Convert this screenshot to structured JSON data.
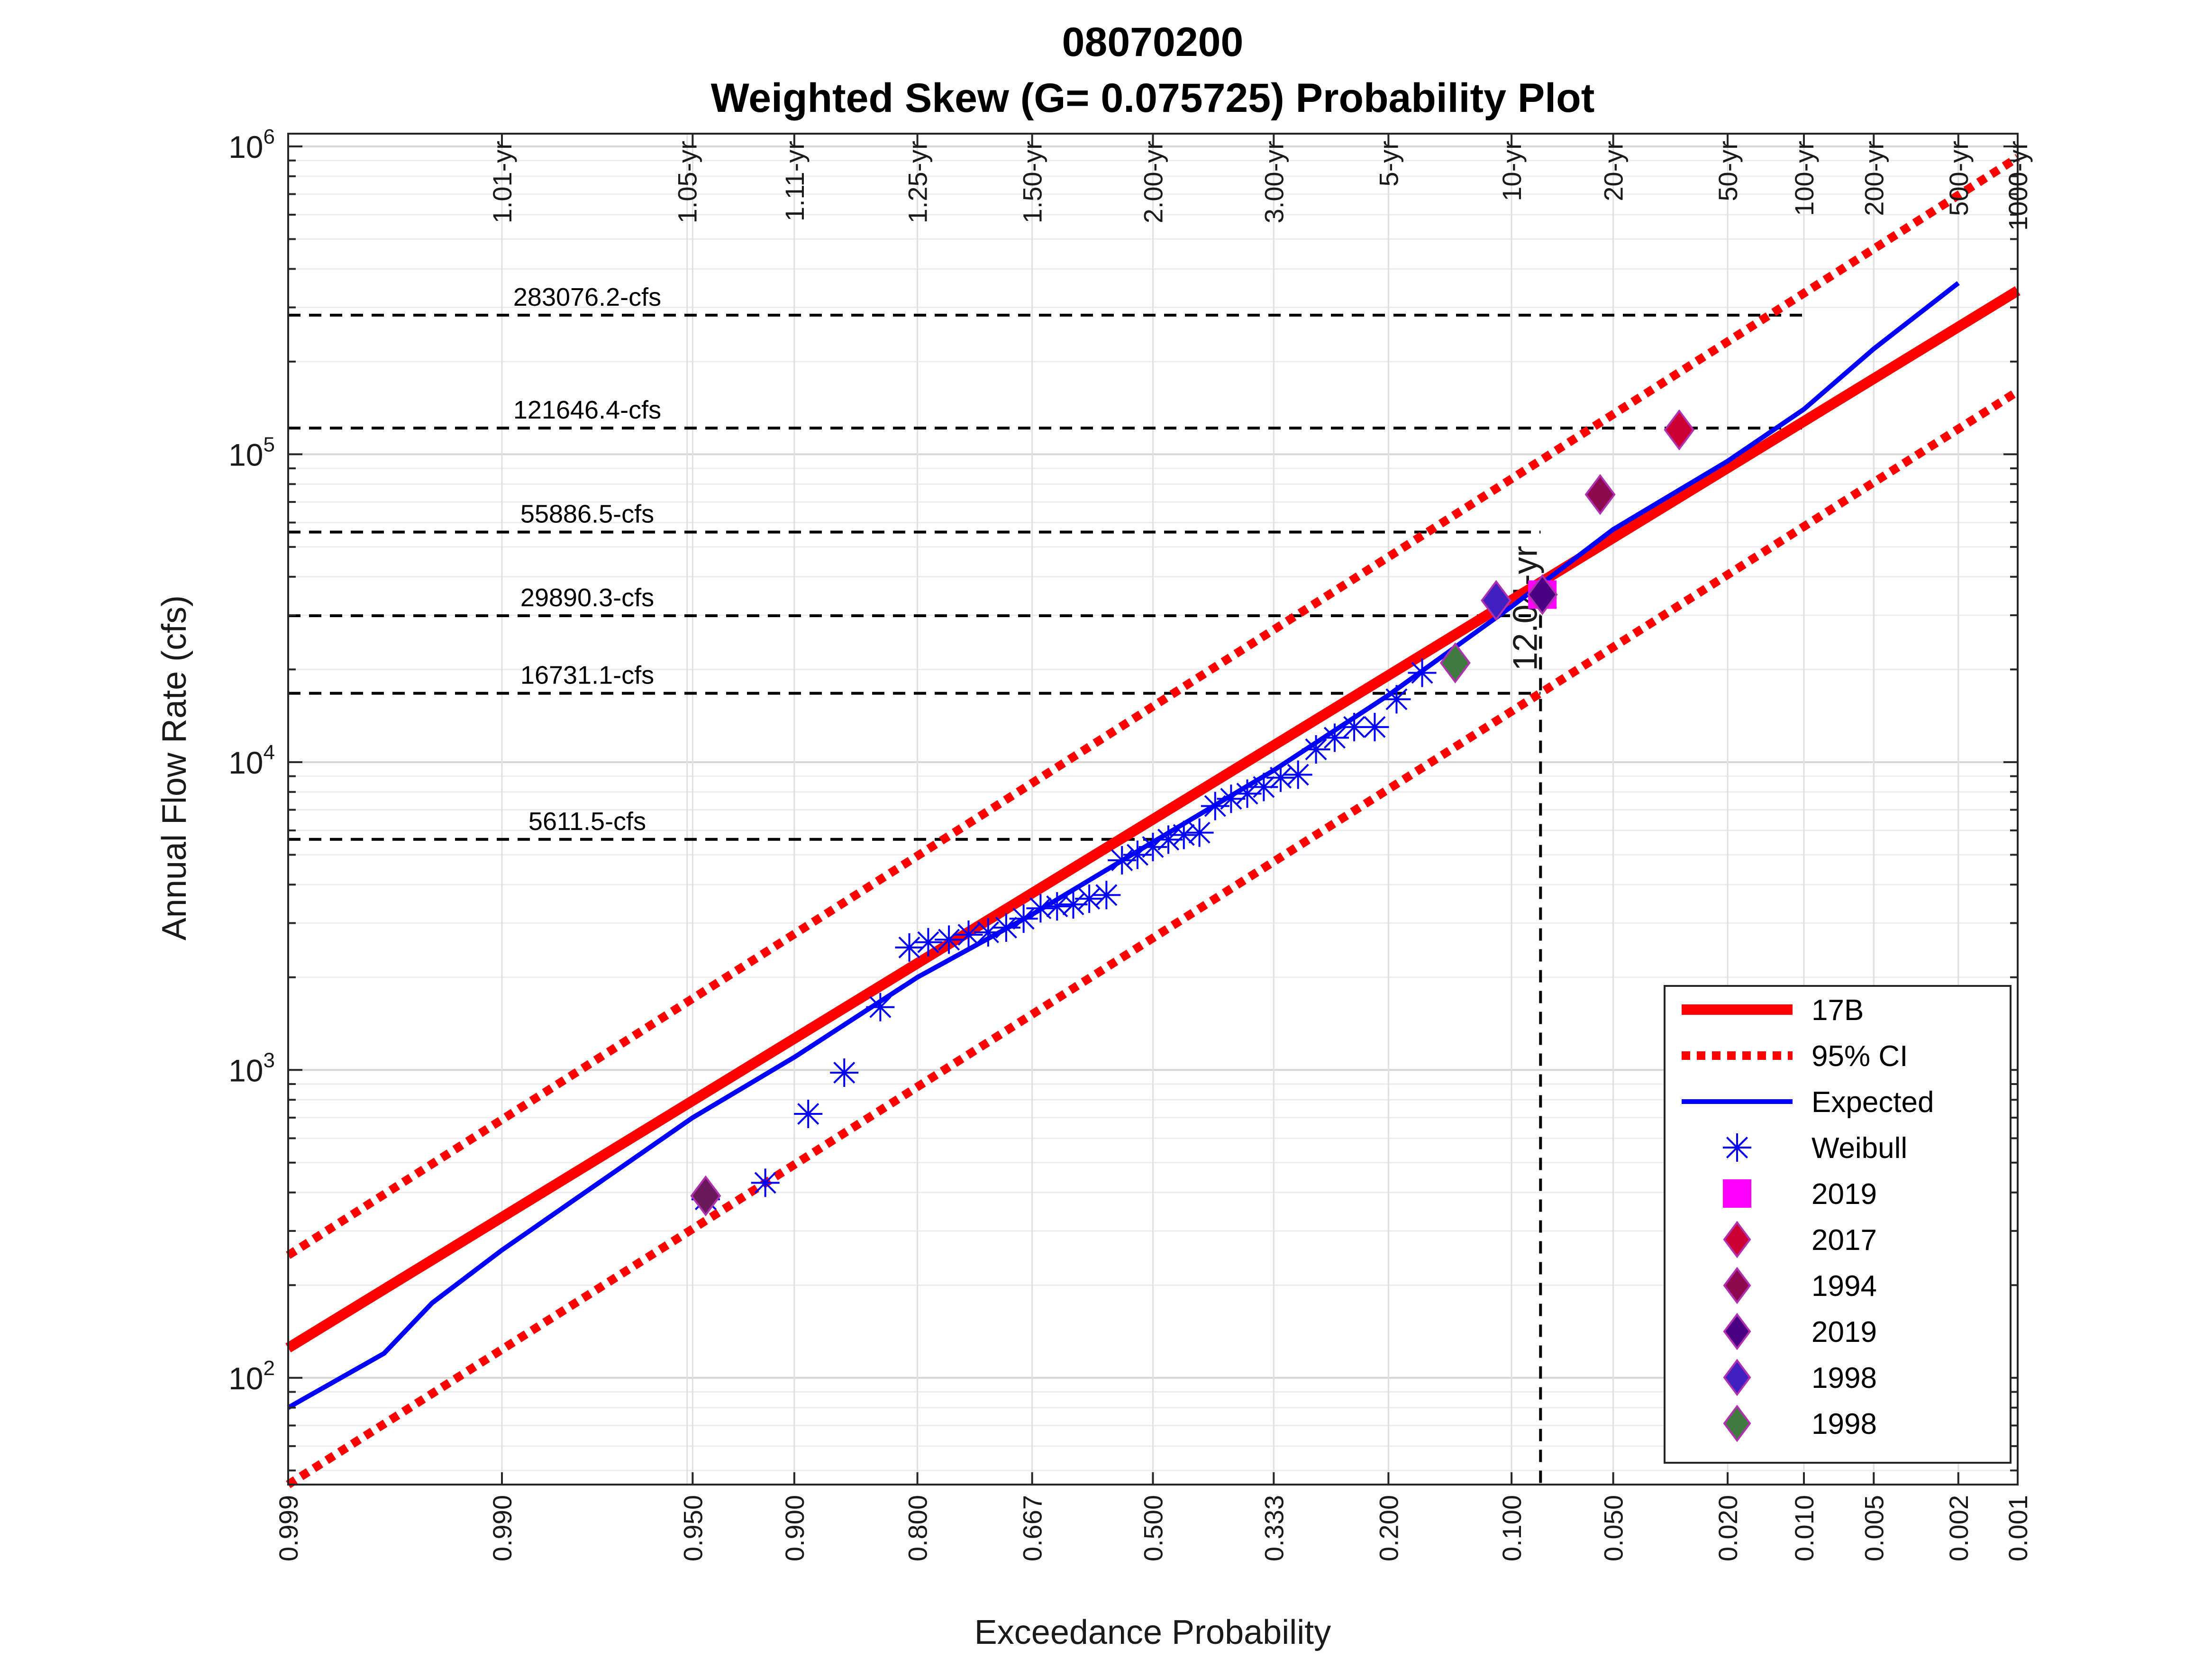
{
  "chart_data": {
    "type": "line",
    "title": "08070200",
    "subtitle": "Weighted Skew (G= 0.075725) Probability Plot",
    "xlabel": "Exceedance Probability",
    "ylabel": "Annual Flow Rate (cfs)",
    "xscale": "normal-probability (reversed)",
    "yscale": "log",
    "xlim": [
      0.999,
      0.001
    ],
    "ylim": [
      45,
      1100000
    ],
    "grid": true,
    "legend_position": "bottom-right",
    "x_ticks": [
      "0.999",
      "0.990",
      "0.950",
      "0.900",
      "0.800",
      "0.667",
      "0.500",
      "0.333",
      "0.200",
      "0.100",
      "0.050",
      "0.020",
      "0.010",
      "0.005",
      "0.002",
      "0.001"
    ],
    "x_tick_values": [
      0.999,
      0.99,
      0.95,
      0.9,
      0.8,
      0.667,
      0.5,
      0.333,
      0.2,
      0.1,
      0.05,
      0.02,
      0.01,
      0.005,
      0.002,
      0.001
    ],
    "y_ticks": [
      {
        "base": "10",
        "exp": "2",
        "value": 100
      },
      {
        "base": "10",
        "exp": "3",
        "value": 1000
      },
      {
        "base": "10",
        "exp": "4",
        "value": 10000
      },
      {
        "base": "10",
        "exp": "5",
        "value": 100000
      },
      {
        "base": "10",
        "exp": "6",
        "value": 1000000
      }
    ],
    "return_periods": [
      {
        "label": "1.01-yr",
        "p": 0.99
      },
      {
        "label": "1.05-yr",
        "p": 0.952
      },
      {
        "label": "1.11-yr",
        "p": 0.9
      },
      {
        "label": "1.25-yr",
        "p": 0.8
      },
      {
        "label": "1.50-yr",
        "p": 0.667
      },
      {
        "label": "2.00-yr",
        "p": 0.5
      },
      {
        "label": "3.00-yr",
        "p": 0.333
      },
      {
        "label": "5-yr",
        "p": 0.2
      },
      {
        "label": "10-yr",
        "p": 0.1
      },
      {
        "label": "20-yr",
        "p": 0.05
      },
      {
        "label": "50-yr",
        "p": 0.02
      },
      {
        "label": "100-yr",
        "p": 0.01
      },
      {
        "label": "200-yr",
        "p": 0.005
      },
      {
        "label": "500-yr",
        "p": 0.002
      },
      {
        "label": "1000-yr",
        "p": 0.001
      }
    ],
    "flow_levels": [
      {
        "label": "283076.2-cfs",
        "value": 283076.2,
        "x_end": 0.01
      },
      {
        "label": "121646.4-cfs",
        "value": 121646.4,
        "x_end": 0.01
      },
      {
        "label": "55886.5-cfs",
        "value": 55886.5,
        "x_end": 0.083
      },
      {
        "label": "29890.3-cfs",
        "value": 29890.3,
        "x_end": 0.083
      },
      {
        "label": "16731.1-cfs",
        "value": 16731.1,
        "x_end": 0.083
      },
      {
        "label": "5611.5-cfs",
        "value": 5611.5,
        "x_end": 0.5
      }
    ],
    "event_marker": {
      "label": "12.04-yr",
      "p": 0.083
    },
    "series": [
      {
        "name": "17B",
        "color": "#ff0000",
        "style": "solid-thick",
        "x": [
          0.999,
          0.001
        ],
        "y": [
          125,
          340000
        ]
      },
      {
        "name": "95% CI",
        "color": "#ff0000",
        "style": "dotted",
        "x": [
          0.999,
          0.001
        ],
        "y": [
          250,
          920000
        ]
      },
      {
        "name": "95% CI (lower)",
        "color": "#ff0000",
        "style": "dotted",
        "x": [
          0.999,
          0.001
        ],
        "y": [
          45,
          160000
        ]
      },
      {
        "name": "Expected",
        "color": "#0000ff",
        "style": "solid",
        "x": [
          0.999,
          0.997,
          0.995,
          0.99,
          0.95,
          0.9,
          0.8,
          0.667,
          0.5,
          0.333,
          0.2,
          0.1,
          0.05,
          0.02,
          0.01,
          0.005,
          0.002
        ],
        "y": [
          80,
          120,
          175,
          260,
          700,
          1100,
          2000,
          3200,
          5500,
          9400,
          16500,
          32000,
          57000,
          95000,
          140000,
          220000,
          360000
        ]
      },
      {
        "name": "Weibull",
        "color": "#0000ff",
        "style": "asterisk",
        "x": [
          0.945,
          0.917,
          0.891,
          0.865,
          0.835,
          0.808,
          0.789,
          0.767,
          0.745,
          0.722,
          0.7,
          0.678,
          0.656,
          0.634,
          0.612,
          0.59,
          0.566,
          0.544,
          0.522,
          0.5,
          0.478,
          0.456,
          0.434,
          0.412,
          0.39,
          0.368,
          0.346,
          0.324,
          0.302,
          0.28,
          0.258,
          0.236,
          0.214,
          0.192,
          0.168
        ],
        "y": [
          380,
          430,
          720,
          980,
          1600,
          2500,
          2600,
          2650,
          2750,
          2800,
          2900,
          3100,
          3350,
          3400,
          3450,
          3600,
          3700,
          4800,
          5000,
          5300,
          5600,
          5800,
          5900,
          7200,
          7600,
          7900,
          8300,
          8900,
          9100,
          11000,
          12000,
          13000,
          13000,
          16000,
          19500
        ]
      }
    ],
    "highlighted_points": [
      {
        "name": "2019",
        "marker": "square",
        "color": "#ff00ff",
        "x": 0.082,
        "y": 35000
      },
      {
        "name": "2017",
        "marker": "diamond",
        "color": "#cc0033",
        "x": 0.03,
        "y": 120000
      },
      {
        "name": "1994",
        "marker": "diamond",
        "color": "#8b0a50",
        "x": 0.055,
        "y": 74000
      },
      {
        "name": "2019",
        "marker": "diamond",
        "color": "#4b0082",
        "x": 0.082,
        "y": 35000
      },
      {
        "name": "1998",
        "marker": "diamond",
        "color": "#4020c0",
        "x": 0.11,
        "y": 33500
      },
      {
        "name": "1998",
        "marker": "diamond",
        "color": "#3f7a3f",
        "x": 0.14,
        "y": 21000
      },
      {
        "name": "",
        "marker": "diamond",
        "color": "#6a1a5a",
        "x": 0.945,
        "y": 390
      }
    ],
    "legend": [
      "17B",
      "95% CI",
      "Expected",
      "Weibull",
      "2019",
      "2017",
      "1994",
      "2019",
      "1998",
      "1998"
    ]
  }
}
